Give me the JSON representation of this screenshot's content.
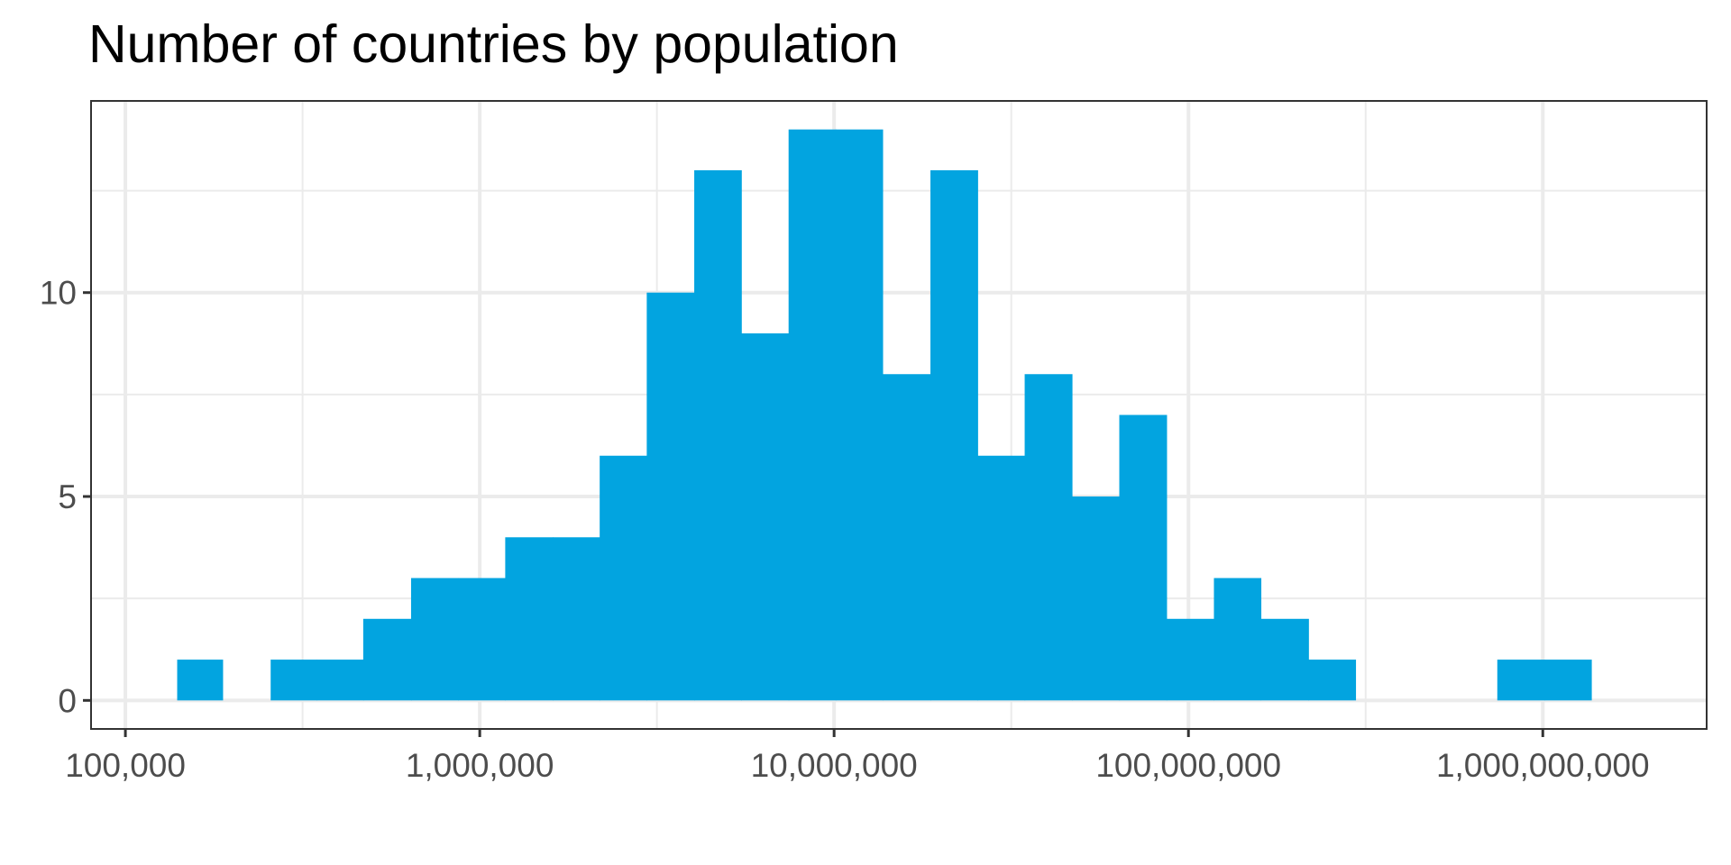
{
  "chart_data": {
    "type": "bar",
    "title": "Number of countries by population",
    "xlabel": "",
    "ylabel": "",
    "x_scale": "log10",
    "xlim": [
      80000,
      2900000000
    ],
    "ylim": [
      -0.7,
      14.7
    ],
    "x_ticks": [
      {
        "value": 100000,
        "label": "100,000"
      },
      {
        "value": 1000000,
        "label": "1,000,000"
      },
      {
        "value": 10000000,
        "label": "10,000,000"
      },
      {
        "value": 100000000,
        "label": "100,000,000"
      },
      {
        "value": 1000000000,
        "label": "1,000,000,000"
      }
    ],
    "y_ticks": [
      {
        "value": 0,
        "label": "0"
      },
      {
        "value": 5,
        "label": "5"
      },
      {
        "value": 10,
        "label": "10"
      }
    ],
    "minor_y_gridlines": [
      2.5,
      7.5,
      12.5
    ],
    "grid": true,
    "bar_color": "#02a4e0",
    "bins": [
      {
        "start": 140000,
        "end": 188000,
        "count": 1
      },
      {
        "start": 188000,
        "end": 257000,
        "count": 0
      },
      {
        "start": 257000,
        "end": 347000,
        "count": 1
      },
      {
        "start": 347000,
        "end": 469000,
        "count": 1
      },
      {
        "start": 469000,
        "end": 640000,
        "count": 2
      },
      {
        "start": 640000,
        "end": 869000,
        "count": 3
      },
      {
        "start": 869000,
        "end": 1180000,
        "count": 3
      },
      {
        "start": 1180000,
        "end": 1610000,
        "count": 4
      },
      {
        "start": 1610000,
        "end": 2180000,
        "count": 4
      },
      {
        "start": 2180000,
        "end": 2960000,
        "count": 6
      },
      {
        "start": 2960000,
        "end": 4030000,
        "count": 10
      },
      {
        "start": 4030000,
        "end": 5470000,
        "count": 13
      },
      {
        "start": 5470000,
        "end": 7440000,
        "count": 9
      },
      {
        "start": 7440000,
        "end": 10100000,
        "count": 14
      },
      {
        "start": 10100000,
        "end": 13700000,
        "count": 14
      },
      {
        "start": 13700000,
        "end": 18700000,
        "count": 8
      },
      {
        "start": 18700000,
        "end": 25400000,
        "count": 13
      },
      {
        "start": 25400000,
        "end": 34500000,
        "count": 6
      },
      {
        "start": 34500000,
        "end": 46900000,
        "count": 8
      },
      {
        "start": 46900000,
        "end": 63800000,
        "count": 5
      },
      {
        "start": 63800000,
        "end": 86700000,
        "count": 7
      },
      {
        "start": 86700000,
        "end": 118000000,
        "count": 2
      },
      {
        "start": 118000000,
        "end": 160000000,
        "count": 3
      },
      {
        "start": 160000000,
        "end": 218000000,
        "count": 2
      },
      {
        "start": 218000000,
        "end": 296000000,
        "count": 1
      },
      {
        "start": 296000000,
        "end": 403000000,
        "count": 0
      },
      {
        "start": 403000000,
        "end": 548000000,
        "count": 0
      },
      {
        "start": 548000000,
        "end": 744000000,
        "count": 0
      },
      {
        "start": 744000000,
        "end": 1010000000,
        "count": 1
      },
      {
        "start": 1010000000,
        "end": 1370000000,
        "count": 1
      }
    ]
  }
}
